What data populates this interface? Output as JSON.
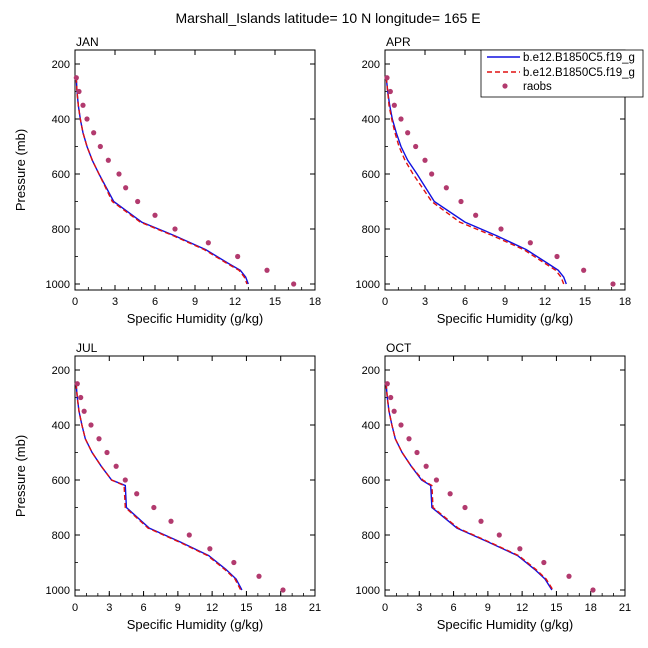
{
  "title": "Marshall_Islands  latitude= 10 N longitude= 165 E",
  "legend": {
    "placement": "top-right",
    "entries": [
      {
        "label": "b.e12.B1850C5.f19_g",
        "style": "solid",
        "color": "#1010e0"
      },
      {
        "label": "b.e12.B1850C5.f19_g",
        "style": "dashed",
        "color": "#e01010"
      },
      {
        "label": "raobs",
        "style": "marker",
        "color": "#b23a6e"
      }
    ]
  },
  "colors": {
    "model_solid": "#1010e0",
    "model_dashed": "#e01010",
    "raobs": "#b23a6e"
  },
  "chart_data": [
    {
      "type": "line",
      "title": "JAN",
      "xlabel": "Specific Humidity (g/kg)",
      "ylabel": "Pressure (mb)",
      "xlim": [
        0,
        18
      ],
      "ylim": [
        1000,
        200
      ],
      "xticks": [
        "0",
        "3",
        "6",
        "9",
        "12",
        "15",
        "18"
      ],
      "yticks": [
        "200",
        "400",
        "600",
        "800",
        "1000"
      ],
      "grid": false,
      "series": [
        {
          "name": "b.e12.B1850C5.f19_g",
          "style": "solid",
          "x": [
            0.1,
            0.15,
            0.25,
            0.4,
            0.6,
            0.9,
            1.3,
            1.8,
            2.9,
            5.0,
            7.5,
            9.8,
            11.5,
            12.4,
            12.8,
            13.0
          ],
          "y": [
            250,
            300,
            350,
            400,
            450,
            500,
            550,
            600,
            700,
            775,
            825,
            875,
            925,
            950,
            975,
            1000
          ]
        },
        {
          "name": "b.e12.B1850C5.f19_g",
          "style": "dashed",
          "x": [
            0.1,
            0.15,
            0.25,
            0.4,
            0.6,
            0.9,
            1.3,
            1.8,
            2.8,
            4.9,
            7.4,
            9.7,
            11.4,
            12.3,
            12.7,
            12.9
          ],
          "y": [
            250,
            300,
            350,
            400,
            450,
            500,
            550,
            600,
            700,
            775,
            825,
            875,
            925,
            950,
            975,
            1000
          ]
        },
        {
          "name": "raobs",
          "style": "marker",
          "x": [
            0.1,
            0.3,
            0.6,
            0.9,
            1.4,
            1.9,
            2.5,
            3.3,
            3.8,
            4.7,
            6.0,
            7.5,
            10.0,
            12.2,
            14.4,
            16.4
          ],
          "y": [
            250,
            300,
            350,
            400,
            450,
            500,
            550,
            600,
            650,
            700,
            750,
            800,
            850,
            900,
            950,
            1000
          ]
        }
      ]
    },
    {
      "type": "line",
      "title": "APR",
      "xlabel": "Specific Humidity (g/kg)",
      "ylabel": "",
      "xlim": [
        0,
        18
      ],
      "ylim": [
        1000,
        200
      ],
      "xticks": [
        "0",
        "3",
        "6",
        "9",
        "12",
        "15",
        "18"
      ],
      "yticks": [
        "200",
        "400",
        "600",
        "800",
        "1000"
      ],
      "grid": false,
      "series": [
        {
          "name": "b.e12.B1850C5.f19_g",
          "style": "solid",
          "x": [
            0.1,
            0.2,
            0.35,
            0.55,
            0.85,
            1.2,
            1.7,
            2.4,
            3.7,
            6.0,
            8.4,
            10.6,
            12.2,
            13.0,
            13.4,
            13.6
          ],
          "y": [
            250,
            300,
            350,
            400,
            450,
            500,
            550,
            600,
            700,
            775,
            825,
            875,
            925,
            950,
            975,
            1000
          ]
        },
        {
          "name": "b.e12.B1850C5.f19_g",
          "style": "dashed",
          "x": [
            0.1,
            0.2,
            0.3,
            0.5,
            0.75,
            1.05,
            1.5,
            2.1,
            3.5,
            5.6,
            8.1,
            10.4,
            12.0,
            12.8,
            13.2,
            13.4
          ],
          "y": [
            250,
            300,
            350,
            400,
            450,
            500,
            550,
            600,
            700,
            775,
            825,
            875,
            925,
            950,
            975,
            1000
          ]
        },
        {
          "name": "raobs",
          "style": "marker",
          "x": [
            0.15,
            0.4,
            0.7,
            1.2,
            1.7,
            2.3,
            3.0,
            3.5,
            4.6,
            5.7,
            6.8,
            8.7,
            10.9,
            12.9,
            14.9,
            17.1
          ],
          "y": [
            250,
            300,
            350,
            400,
            450,
            500,
            550,
            600,
            650,
            700,
            750,
            800,
            850,
            900,
            950,
            1000
          ]
        }
      ]
    },
    {
      "type": "line",
      "title": "JUL",
      "xlabel": "Specific Humidity (g/kg)",
      "ylabel": "Pressure (mb)",
      "xlim": [
        0,
        21
      ],
      "ylim": [
        1000,
        200
      ],
      "xticks": [
        "0",
        "3",
        "6",
        "9",
        "12",
        "15",
        "18",
        "21"
      ],
      "yticks": [
        "200",
        "400",
        "600",
        "800",
        "1000"
      ],
      "grid": false,
      "series": [
        {
          "name": "b.e12.B1850C5.f19_g",
          "style": "solid",
          "x": [
            0.1,
            0.2,
            0.35,
            0.6,
            0.9,
            1.5,
            2.3,
            3.2,
            4.4,
            4.5,
            6.5,
            9.2,
            11.7,
            13.2,
            14.1,
            14.6
          ],
          "y": [
            250,
            300,
            350,
            400,
            450,
            500,
            550,
            600,
            620,
            700,
            775,
            825,
            875,
            925,
            960,
            1000
          ]
        },
        {
          "name": "b.e12.B1850C5.f19_g",
          "style": "dashed",
          "x": [
            0.1,
            0.2,
            0.35,
            0.6,
            0.9,
            1.5,
            2.3,
            3.2,
            4.3,
            4.4,
            6.4,
            9.1,
            11.6,
            13.1,
            14.0,
            14.5
          ],
          "y": [
            250,
            300,
            350,
            400,
            450,
            500,
            550,
            600,
            620,
            700,
            775,
            825,
            875,
            925,
            960,
            1000
          ]
        },
        {
          "name": "raobs",
          "style": "marker",
          "x": [
            0.2,
            0.5,
            0.8,
            1.4,
            2.1,
            2.8,
            3.6,
            4.4,
            5.4,
            6.9,
            8.4,
            10.0,
            11.8,
            13.9,
            16.1,
            18.2
          ],
          "y": [
            250,
            300,
            350,
            400,
            450,
            500,
            550,
            600,
            650,
            700,
            750,
            800,
            850,
            900,
            950,
            1000
          ]
        }
      ]
    },
    {
      "type": "line",
      "title": "OCT",
      "xlabel": "Specific Humidity (g/kg)",
      "ylabel": "",
      "xlim": [
        0,
        21
      ],
      "ylim": [
        1000,
        200
      ],
      "xticks": [
        "0",
        "3",
        "6",
        "9",
        "12",
        "15",
        "18",
        "21"
      ],
      "yticks": [
        "200",
        "400",
        "600",
        "800",
        "1000"
      ],
      "grid": false,
      "series": [
        {
          "name": "b.e12.B1850C5.f19_g",
          "style": "solid",
          "x": [
            0.1,
            0.2,
            0.35,
            0.6,
            0.9,
            1.5,
            2.3,
            3.2,
            4.0,
            4.1,
            6.3,
            9.0,
            11.6,
            13.1,
            14.0,
            14.6
          ],
          "y": [
            250,
            300,
            350,
            400,
            450,
            500,
            550,
            600,
            620,
            700,
            775,
            825,
            875,
            925,
            960,
            1000
          ]
        },
        {
          "name": "b.e12.B1850C5.f19_g",
          "style": "dashed",
          "x": [
            0.1,
            0.2,
            0.35,
            0.6,
            0.9,
            1.5,
            2.3,
            3.3,
            4.1,
            4.2,
            6.4,
            9.1,
            11.7,
            13.2,
            14.1,
            14.7
          ],
          "y": [
            250,
            300,
            350,
            400,
            450,
            500,
            550,
            600,
            620,
            700,
            775,
            825,
            875,
            925,
            960,
            1000
          ]
        },
        {
          "name": "raobs",
          "style": "marker",
          "x": [
            0.2,
            0.5,
            0.8,
            1.4,
            2.1,
            2.8,
            3.6,
            4.5,
            5.7,
            7.0,
            8.4,
            10.0,
            11.8,
            13.9,
            16.1,
            18.2
          ],
          "y": [
            250,
            300,
            350,
            400,
            450,
            500,
            550,
            600,
            650,
            700,
            750,
            800,
            850,
            900,
            950,
            1000
          ]
        }
      ]
    }
  ]
}
